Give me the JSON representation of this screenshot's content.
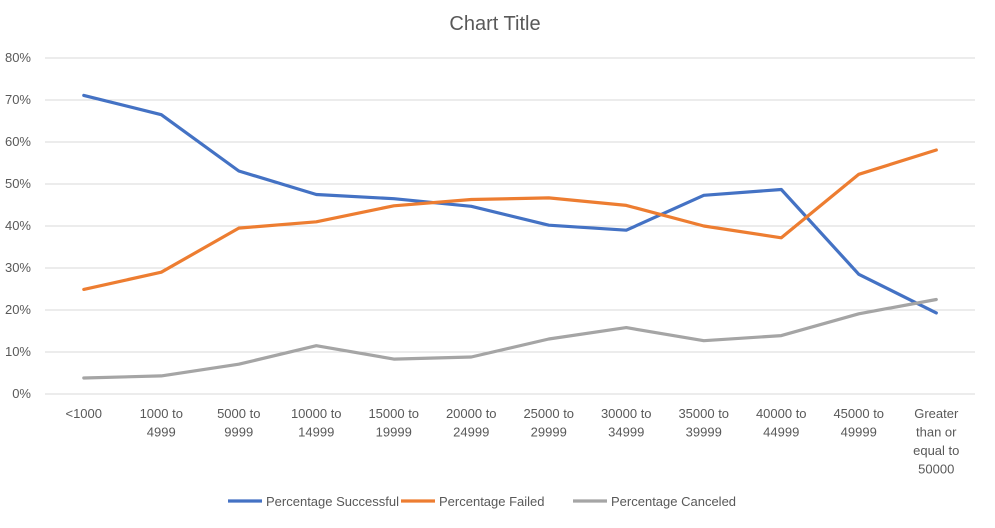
{
  "chart_data": {
    "type": "line",
    "title": "Chart Title",
    "xlabel": "",
    "ylabel": "",
    "ylim": [
      0,
      80
    ],
    "y_ticks": [
      "0%",
      "10%",
      "20%",
      "30%",
      "40%",
      "50%",
      "60%",
      "70%",
      "80%"
    ],
    "grid": true,
    "legend_position": "bottom",
    "categories": [
      [
        "<1000"
      ],
      [
        "1000 to",
        "4999"
      ],
      [
        "5000 to",
        "9999"
      ],
      [
        "10000 to",
        "14999"
      ],
      [
        "15000 to",
        "19999"
      ],
      [
        "20000 to",
        "24999"
      ],
      [
        "25000 to",
        "29999"
      ],
      [
        "30000 to",
        "34999"
      ],
      [
        "35000 to",
        "39999"
      ],
      [
        "40000 to",
        "44999"
      ],
      [
        "45000 to",
        "49999"
      ],
      [
        "Greater",
        "than or",
        "equal to",
        "50000"
      ]
    ],
    "series": [
      {
        "name": "Percentage Successful",
        "color": "#4472c4",
        "values": [
          71.1,
          66.5,
          53.1,
          47.5,
          46.5,
          44.7,
          40.2,
          39.0,
          47.3,
          48.7,
          28.5,
          19.3
        ]
      },
      {
        "name": "Percentage Failed",
        "color": "#ed7d31",
        "values": [
          24.9,
          29.0,
          39.5,
          41.0,
          44.8,
          46.3,
          46.7,
          44.9,
          40.0,
          37.2,
          52.3,
          58.1
        ]
      },
      {
        "name": "Percentage Canceled",
        "color": "#a5a5a5",
        "values": [
          3.8,
          4.3,
          7.1,
          11.5,
          8.3,
          8.8,
          13.1,
          15.8,
          12.7,
          13.9,
          19.1,
          22.5
        ]
      }
    ]
  }
}
